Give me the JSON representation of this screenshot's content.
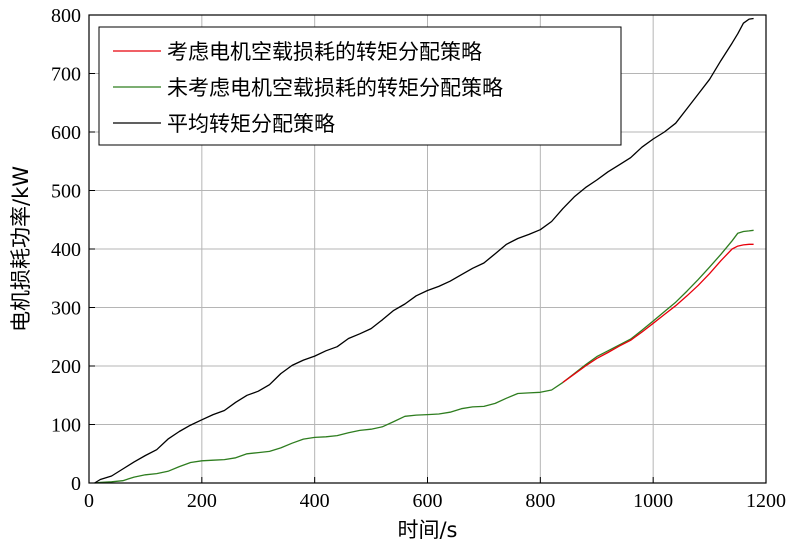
{
  "chart_data": {
    "type": "line",
    "title": "",
    "xlabel": "时间/s",
    "ylabel": "电机损耗功率/kW",
    "xlim": [
      0,
      1200
    ],
    "ylim": [
      0,
      800
    ],
    "x_ticks": [
      "0",
      "200",
      "400",
      "600",
      "800",
      "1000",
      "1200"
    ],
    "y_ticks": [
      "0",
      "100",
      "200",
      "300",
      "400",
      "500",
      "600",
      "700",
      "800"
    ],
    "grid": true,
    "legend_position": "top-left",
    "series": [
      {
        "name": "考虑电机空载损耗的转矩分配策略",
        "color": "#e8000b",
        "x": [
          840,
          860,
          880,
          900,
          920,
          940,
          960,
          980,
          1000,
          1020,
          1040,
          1060,
          1080,
          1100,
          1120,
          1140,
          1150,
          1160,
          1170,
          1178
        ],
        "y": [
          172,
          186,
          200,
          213,
          223,
          234,
          244,
          258,
          273,
          288,
          303,
          320,
          338,
          358,
          380,
          400,
          405,
          407,
          408,
          408
        ]
      },
      {
        "name": "未考虑电机空载损耗的转矩分配策略",
        "color": "#2e7d1f",
        "x": [
          10,
          20,
          40,
          60,
          80,
          100,
          120,
          140,
          160,
          180,
          200,
          220,
          240,
          260,
          280,
          300,
          320,
          340,
          360,
          380,
          400,
          420,
          440,
          460,
          480,
          500,
          520,
          540,
          560,
          580,
          600,
          620,
          640,
          660,
          680,
          700,
          720,
          740,
          760,
          780,
          800,
          820,
          840,
          860,
          880,
          900,
          920,
          940,
          960,
          980,
          1000,
          1020,
          1040,
          1060,
          1080,
          1100,
          1120,
          1140,
          1150,
          1160,
          1170,
          1178
        ],
        "y": [
          0,
          1,
          2,
          4,
          10,
          14,
          16,
          20,
          28,
          35,
          38,
          39,
          40,
          43,
          50,
          52,
          54,
          60,
          68,
          75,
          78,
          79,
          81,
          86,
          90,
          92,
          96,
          105,
          114,
          116,
          117,
          118,
          121,
          127,
          130,
          131,
          136,
          145,
          153,
          154,
          155,
          159,
          172,
          187,
          202,
          216,
          226,
          236,
          246,
          261,
          277,
          293,
          309,
          328,
          348,
          369,
          391,
          414,
          427,
          430,
          431,
          432
        ]
      },
      {
        "name": "平均转矩分配策略",
        "color": "#000000",
        "x": [
          10,
          20,
          40,
          60,
          80,
          100,
          120,
          140,
          160,
          180,
          200,
          220,
          240,
          260,
          280,
          300,
          320,
          340,
          360,
          380,
          400,
          420,
          440,
          460,
          480,
          500,
          520,
          540,
          560,
          580,
          600,
          620,
          640,
          660,
          680,
          700,
          720,
          740,
          760,
          780,
          800,
          820,
          840,
          860,
          880,
          900,
          920,
          940,
          960,
          980,
          1000,
          1020,
          1040,
          1060,
          1080,
          1100,
          1120,
          1140,
          1150,
          1160,
          1170,
          1178
        ],
        "y": [
          0,
          6,
          12,
          24,
          36,
          47,
          57,
          75,
          88,
          99,
          108,
          117,
          124,
          138,
          150,
          157,
          168,
          187,
          201,
          210,
          217,
          226,
          233,
          247,
          255,
          264,
          279,
          295,
          306,
          320,
          329,
          336,
          345,
          356,
          367,
          376,
          392,
          408,
          418,
          425,
          433,
          447,
          469,
          489,
          505,
          518,
          532,
          544,
          556,
          574,
          588,
          600,
          615,
          640,
          665,
          690,
          722,
          752,
          768,
          786,
          793,
          794
        ]
      }
    ]
  }
}
